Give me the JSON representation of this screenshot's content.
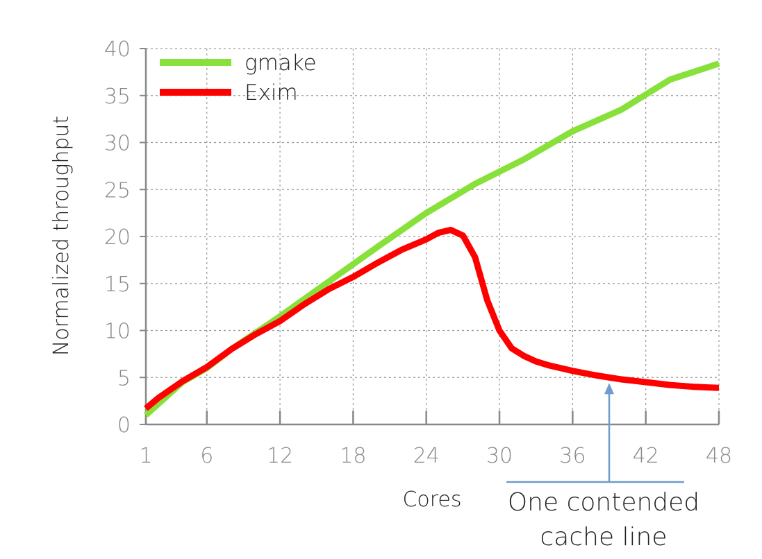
{
  "chart_data": {
    "type": "line",
    "xlabel": "Cores",
    "ylabel": "Normalized throughput",
    "xlim": [
      1,
      48
    ],
    "ylim": [
      0,
      40
    ],
    "x_ticks": [
      1,
      6,
      12,
      18,
      24,
      30,
      36,
      42,
      48
    ],
    "y_ticks": [
      0,
      5,
      10,
      15,
      20,
      25,
      30,
      35,
      40
    ],
    "grid": true,
    "legend_position": "top-left",
    "series": [
      {
        "name": "gmake",
        "color": "#88e03a",
        "points": [
          [
            1,
            1.0
          ],
          [
            4,
            4.5
          ],
          [
            6,
            6.0
          ],
          [
            8,
            8.0
          ],
          [
            12,
            11.5
          ],
          [
            16,
            15.2
          ],
          [
            20,
            18.9
          ],
          [
            24,
            22.5
          ],
          [
            28,
            25.6
          ],
          [
            32,
            28.2
          ],
          [
            36,
            31.2
          ],
          [
            40,
            33.5
          ],
          [
            44,
            36.7
          ],
          [
            48,
            38.4
          ]
        ]
      },
      {
        "name": "Exim",
        "color": "#ff0000",
        "points": [
          [
            1,
            1.7
          ],
          [
            2,
            2.8
          ],
          [
            4,
            4.6
          ],
          [
            6,
            6.1
          ],
          [
            8,
            8.0
          ],
          [
            10,
            9.6
          ],
          [
            12,
            11.0
          ],
          [
            14,
            12.8
          ],
          [
            16,
            14.4
          ],
          [
            18,
            15.7
          ],
          [
            20,
            17.2
          ],
          [
            22,
            18.6
          ],
          [
            24,
            19.7
          ],
          [
            25,
            20.4
          ],
          [
            26,
            20.7
          ],
          [
            27,
            20.1
          ],
          [
            28,
            17.8
          ],
          [
            29,
            13.2
          ],
          [
            30,
            10.0
          ],
          [
            31,
            8.1
          ],
          [
            32,
            7.3
          ],
          [
            33,
            6.7
          ],
          [
            34,
            6.3
          ],
          [
            36,
            5.7
          ],
          [
            38,
            5.2
          ],
          [
            40,
            4.8
          ],
          [
            42,
            4.5
          ],
          [
            44,
            4.2
          ],
          [
            46,
            4.0
          ],
          [
            48,
            3.9
          ]
        ]
      }
    ],
    "annotation": {
      "text_line1": "One contended",
      "text_line2": "cache line",
      "arrow_x": 39,
      "bracket_from_x": 30,
      "bracket_to_x": 46,
      "color": "#6f9ccb"
    }
  }
}
